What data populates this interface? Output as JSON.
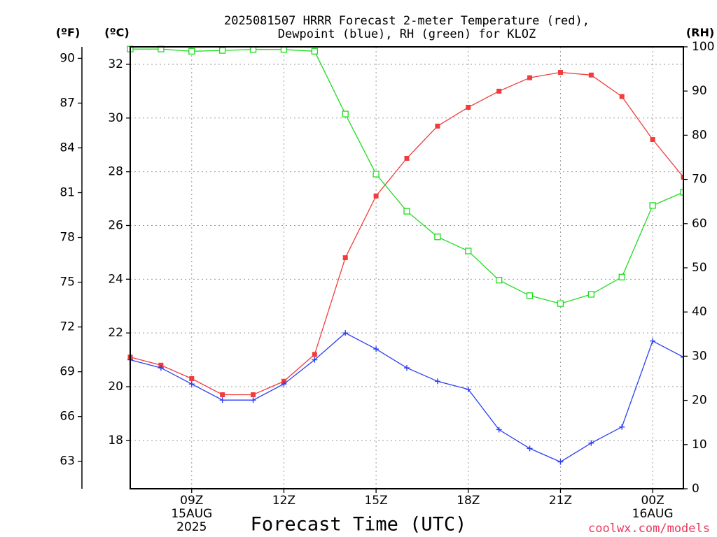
{
  "chart_data": {
    "type": "line",
    "title_lines": [
      "2025081507 HRRR Forecast 2-meter Temperature (red),",
      "Dewpoint (blue), RH (green) for KLOZ"
    ],
    "xlabel": "Forecast Time (UTC)",
    "x": [
      "2025-08-15 07Z",
      "2025-08-15 08Z",
      "2025-08-15 09Z",
      "2025-08-15 10Z",
      "2025-08-15 11Z",
      "2025-08-15 12Z",
      "2025-08-15 13Z",
      "2025-08-15 14Z",
      "2025-08-15 15Z",
      "2025-08-15 16Z",
      "2025-08-15 17Z",
      "2025-08-15 18Z",
      "2025-08-15 19Z",
      "2025-08-15 20Z",
      "2025-08-15 21Z",
      "2025-08-15 22Z",
      "2025-08-15 23Z",
      "2025-08-16 00Z",
      "2025-08-16 01Z"
    ],
    "x_ticks": [
      {
        "x": "2025-08-15 09Z",
        "lines": [
          "09Z",
          "15AUG",
          "2025"
        ]
      },
      {
        "x": "2025-08-15 12Z",
        "lines": [
          "12Z"
        ]
      },
      {
        "x": "2025-08-15 15Z",
        "lines": [
          "15Z"
        ]
      },
      {
        "x": "2025-08-15 18Z",
        "lines": [
          "18Z"
        ]
      },
      {
        "x": "2025-08-15 21Z",
        "lines": [
          "21Z"
        ]
      },
      {
        "x": "2025-08-16 00Z",
        "lines": [
          "00Z",
          "16AUG"
        ]
      }
    ],
    "y_axes": {
      "fahrenheit": {
        "label": "(ºF)",
        "ticks": [
          63,
          66,
          69,
          72,
          75,
          78,
          81,
          84,
          87,
          90
        ]
      },
      "celsius": {
        "label": "(ºC)",
        "ticks": [
          18,
          20,
          22,
          24,
          26,
          28,
          30,
          32
        ],
        "range": [
          16.2,
          32.65
        ]
      },
      "rh": {
        "label": "(RH)",
        "ticks": [
          0,
          10,
          20,
          30,
          40,
          50,
          60,
          70,
          80,
          90,
          100
        ],
        "range": [
          0,
          100
        ]
      }
    },
    "grid": true,
    "series": {
      "temperature_c": {
        "color": "#f03c3c",
        "marker": "filled-square-icon",
        "values": [
          21.1,
          20.8,
          20.3,
          19.7,
          19.7,
          20.2,
          21.2,
          24.8,
          27.1,
          28.5,
          29.7,
          30.4,
          31.0,
          31.5,
          31.7,
          31.6,
          30.8,
          29.2,
          27.8
        ]
      },
      "dewpoint_c": {
        "color": "#2b3ff2",
        "marker": "plus-icon",
        "values": [
          21.0,
          20.7,
          20.1,
          19.5,
          19.5,
          20.1,
          21.0,
          22.0,
          21.4,
          20.7,
          20.2,
          19.9,
          18.4,
          17.7,
          17.2,
          17.9,
          18.5,
          21.7,
          21.1
        ]
      },
      "rh_percent": {
        "color": "#1fdc1f",
        "marker": "hollow-square-icon",
        "values": [
          99.5,
          99.5,
          99.0,
          99.2,
          99.4,
          99.4,
          99.0,
          84.8,
          71.2,
          62.8,
          57.0,
          53.8,
          47.2,
          43.7,
          41.9,
          44.0,
          47.9,
          64.1,
          67.1
        ]
      }
    }
  },
  "footer": {
    "credit": "coolwx.com/models"
  }
}
